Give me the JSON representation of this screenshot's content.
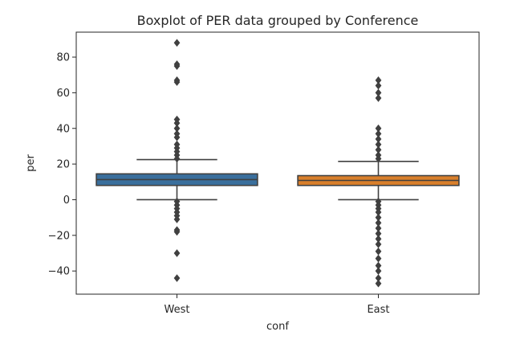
{
  "chart_data": {
    "type": "boxplot",
    "title": "Boxplot of PER data grouped by Conference",
    "xlabel": "conf",
    "ylabel": "per",
    "categories": [
      "West",
      "East"
    ],
    "colors": [
      "#3a6f9d",
      "#d97f2b"
    ],
    "ylim": [
      -53,
      94
    ],
    "yticks": [
      -40,
      -20,
      0,
      20,
      40,
      60,
      80
    ],
    "grid": false,
    "boxes": [
      {
        "name": "West",
        "q1": 8,
        "median": 11.3,
        "q3": 14.5,
        "whisker_low": 0,
        "whisker_high": 22.5,
        "outliers": [
          88,
          76,
          75,
          67,
          66,
          45,
          43,
          40,
          37,
          35,
          31,
          29,
          27,
          25,
          23,
          -1,
          -3,
          -5,
          -7,
          -9,
          -11,
          -17,
          -18,
          -30,
          -44
        ]
      },
      {
        "name": "East",
        "q1": 8,
        "median": 10.8,
        "q3": 13.5,
        "whisker_low": 0,
        "whisker_high": 21.5,
        "outliers": [
          67,
          64,
          60,
          57,
          40,
          37,
          34,
          31,
          28,
          25,
          23,
          -1,
          -3,
          -5,
          -7,
          -10,
          -13,
          -16,
          -19,
          -22,
          -25,
          -29,
          -33,
          -37,
          -40,
          -44,
          -47
        ]
      }
    ]
  }
}
